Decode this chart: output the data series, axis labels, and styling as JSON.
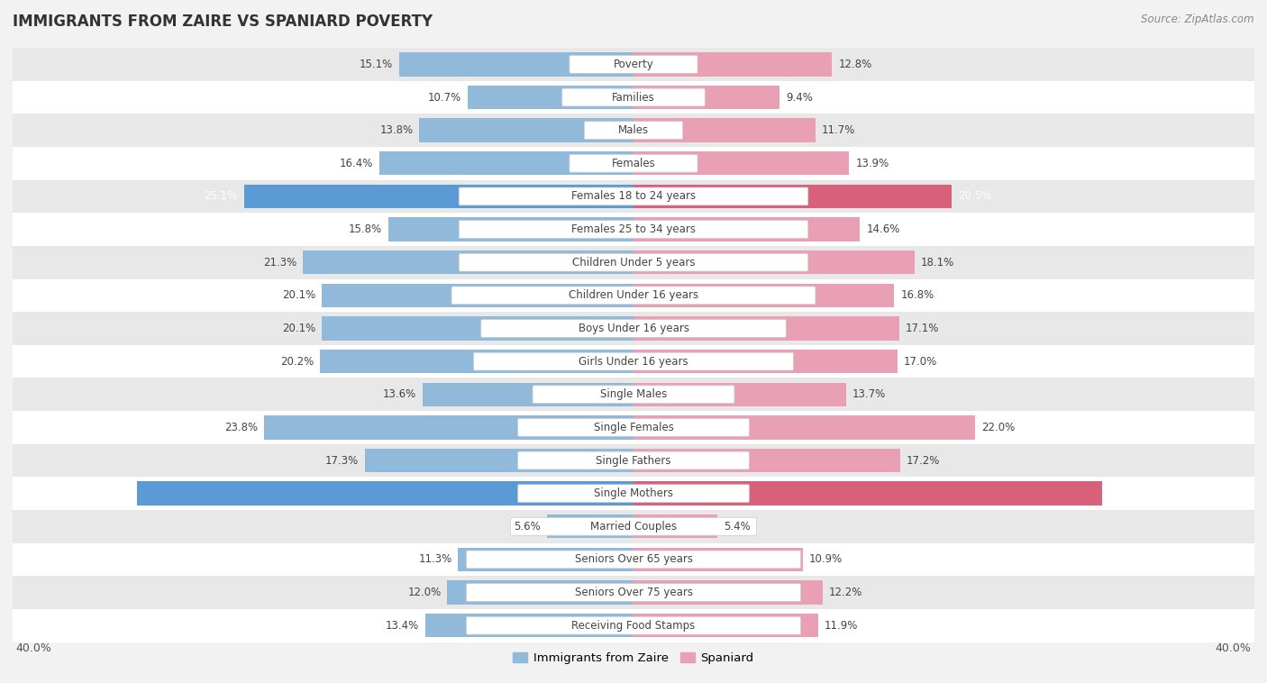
{
  "title": "IMMIGRANTS FROM ZAIRE VS SPANIARD POVERTY",
  "source": "Source: ZipAtlas.com",
  "categories": [
    "Poverty",
    "Families",
    "Males",
    "Females",
    "Females 18 to 24 years",
    "Females 25 to 34 years",
    "Children Under 5 years",
    "Children Under 16 years",
    "Boys Under 16 years",
    "Girls Under 16 years",
    "Single Males",
    "Single Females",
    "Single Fathers",
    "Single Mothers",
    "Married Couples",
    "Seniors Over 65 years",
    "Seniors Over 75 years",
    "Receiving Food Stamps"
  ],
  "zaire_values": [
    15.1,
    10.7,
    13.8,
    16.4,
    25.1,
    15.8,
    21.3,
    20.1,
    20.1,
    20.2,
    13.6,
    23.8,
    17.3,
    32.0,
    5.6,
    11.3,
    12.0,
    13.4
  ],
  "spaniard_values": [
    12.8,
    9.4,
    11.7,
    13.9,
    20.5,
    14.6,
    18.1,
    16.8,
    17.1,
    17.0,
    13.7,
    22.0,
    17.2,
    30.2,
    5.4,
    10.9,
    12.2,
    11.9
  ],
  "zaire_color_normal": "#91b9d9",
  "spaniard_color_normal": "#e9a0b5",
  "zaire_color_highlight": "#5b9bd5",
  "spaniard_color_highlight": "#d8607a",
  "highlight_rows": [
    4,
    13
  ],
  "background_color": "#f2f2f2",
  "row_light_color": "#ffffff",
  "row_dark_color": "#e8e8e8",
  "xlim": 40.0,
  "legend_zaire": "Immigrants from Zaire",
  "legend_spaniard": "Spaniard",
  "label_fontsize": 8.5,
  "value_fontsize": 8.5,
  "title_fontsize": 12,
  "source_fontsize": 8.5
}
